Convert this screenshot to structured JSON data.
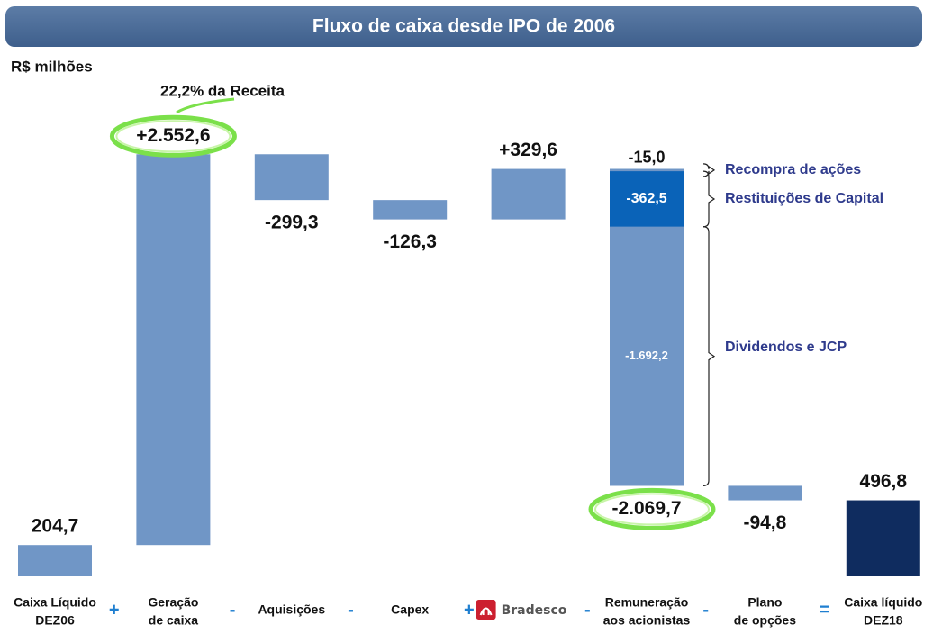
{
  "chart_data": {
    "type": "waterfall",
    "title": "Fluxo de caixa desde IPO de 2006",
    "unit_label": "R$ milhões",
    "annotation": "22,2% da Receita",
    "categories": [
      [
        "Caixa Líquido",
        "DEZ06"
      ],
      [
        "Geração",
        "de caixa"
      ],
      [
        "Aquisições"
      ],
      [
        "Capex"
      ],
      [
        "Bradesco"
      ],
      [
        "Remuneração",
        "aos acionistas"
      ],
      [
        "Plano",
        "de opções"
      ],
      [
        "Caixa líquido",
        "DEZ18"
      ]
    ],
    "operators": [
      "+",
      "-",
      "-",
      "+",
      "-",
      "-",
      "="
    ],
    "measure": [
      "absolute",
      "relative",
      "relative",
      "relative",
      "relative",
      "relative",
      "relative",
      "absolute"
    ],
    "values": [
      204.7,
      2552.6,
      -299.3,
      -126.3,
      329.6,
      -2069.7,
      -94.8,
      496.8
    ],
    "value_labels": [
      "204,7",
      "+2.552,6",
      "-299,3",
      "-126,3",
      "+329,6",
      "-2.069,7",
      "-94,8",
      "496,8"
    ],
    "colors": [
      "#7096c6",
      "#7096c6",
      "#7096c6",
      "#7096c6",
      "#7096c6",
      "#7096c6",
      "#7096c6",
      "#0f2c5f"
    ],
    "highlight": [
      1,
      5
    ],
    "breakdown": {
      "category": 5,
      "series": [
        {
          "name": "Recompra de ações",
          "value": -15.0,
          "label": "-15,0",
          "color": "#7096c6"
        },
        {
          "name": "Restituições de Capital",
          "value": -362.5,
          "label": "-362,5",
          "color": "#0a63b8"
        },
        {
          "name": "Dividendos e JCP",
          "value": -1692.2,
          "label": "-1.692,2",
          "color": "#7096c6"
        }
      ]
    }
  }
}
